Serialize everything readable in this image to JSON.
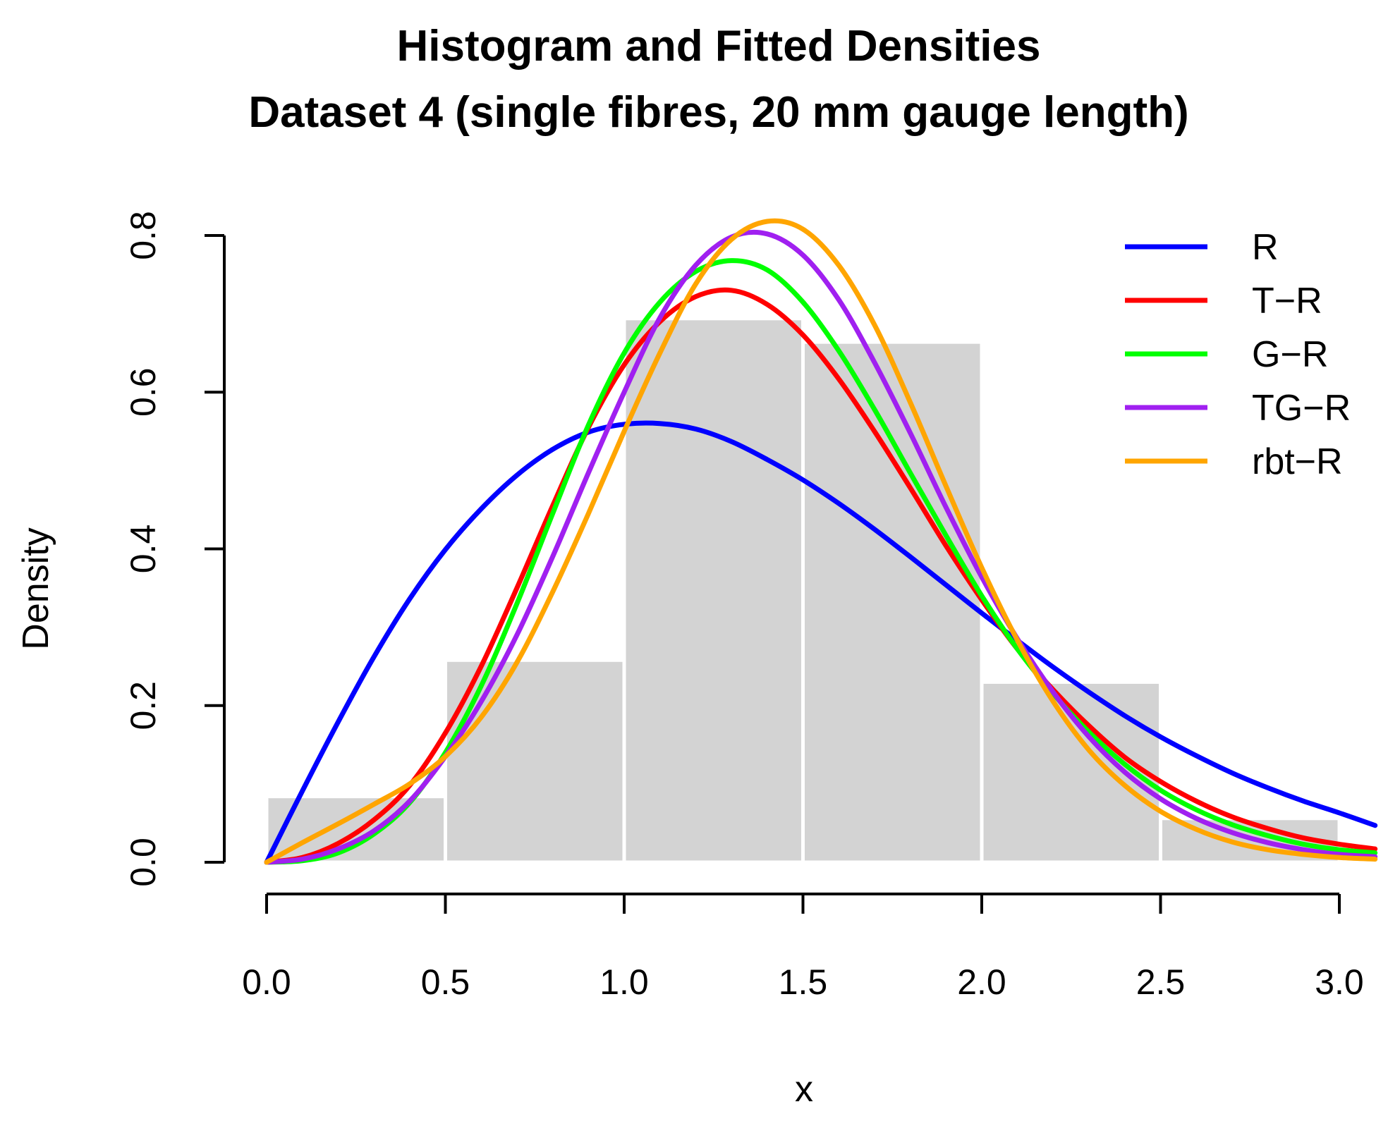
{
  "chart_data": {
    "type": "histogram+line",
    "title_line1": "Histogram and Fitted Densities",
    "title_line2": "Dataset 4 (single fibres, 20 mm gauge length)",
    "xlabel": "x",
    "ylabel": "Density",
    "xlim": [
      0.0,
      3.1
    ],
    "ylim": [
      0.0,
      0.8
    ],
    "x_ticks": [
      "0.0",
      "0.5",
      "1.0",
      "1.5",
      "2.0",
      "2.5",
      "3.0"
    ],
    "y_ticks": [
      "0.0",
      "0.2",
      "0.4",
      "0.6",
      "0.8"
    ],
    "histogram": {
      "color": "#d3d3d3",
      "bins": [
        {
          "from": 0.0,
          "to": 0.5,
          "density": 0.084
        },
        {
          "from": 0.5,
          "to": 1.0,
          "density": 0.258
        },
        {
          "from": 1.0,
          "to": 1.5,
          "density": 0.694
        },
        {
          "from": 1.5,
          "to": 2.0,
          "density": 0.664
        },
        {
          "from": 2.0,
          "to": 2.5,
          "density": 0.23
        },
        {
          "from": 2.5,
          "to": 3.0,
          "density": 0.056
        }
      ]
    },
    "series": [
      {
        "name": "R",
        "color": "#0000ff",
        "x": [
          0.0,
          0.1,
          0.2,
          0.3,
          0.4,
          0.5,
          0.6,
          0.7,
          0.8,
          0.9,
          1.0,
          1.1,
          1.2,
          1.3,
          1.4,
          1.5,
          1.6,
          1.7,
          1.8,
          1.9,
          2.0,
          2.1,
          2.2,
          2.3,
          2.4,
          2.5,
          2.6,
          2.7,
          2.8,
          2.9,
          3.0,
          3.1
        ],
        "y": [
          0.0,
          0.091,
          0.179,
          0.262,
          0.336,
          0.399,
          0.451,
          0.494,
          0.527,
          0.549,
          0.559,
          0.56,
          0.553,
          0.537,
          0.514,
          0.488,
          0.458,
          0.425,
          0.39,
          0.354,
          0.318,
          0.283,
          0.249,
          0.217,
          0.187,
          0.16,
          0.136,
          0.114,
          0.095,
          0.078,
          0.063,
          0.047
        ]
      },
      {
        "name": "T−R",
        "color": "#ff0000",
        "x": [
          0.0,
          0.1,
          0.2,
          0.3,
          0.4,
          0.5,
          0.6,
          0.7,
          0.8,
          0.9,
          1.0,
          1.1,
          1.2,
          1.3,
          1.4,
          1.5,
          1.6,
          1.7,
          1.8,
          1.9,
          2.0,
          2.1,
          2.2,
          2.3,
          2.4,
          2.5,
          2.6,
          2.7,
          2.8,
          2.9,
          3.0,
          3.1
        ],
        "y": [
          0.0,
          0.006,
          0.024,
          0.054,
          0.098,
          0.165,
          0.25,
          0.35,
          0.455,
          0.555,
          0.635,
          0.69,
          0.722,
          0.73,
          0.712,
          0.673,
          0.617,
          0.55,
          0.478,
          0.404,
          0.335,
          0.272,
          0.22,
          0.174,
          0.134,
          0.103,
          0.078,
          0.058,
          0.043,
          0.031,
          0.023,
          0.017
        ]
      },
      {
        "name": "G−R",
        "color": "#00ff00",
        "x": [
          0.0,
          0.1,
          0.2,
          0.3,
          0.4,
          0.5,
          0.6,
          0.7,
          0.8,
          0.9,
          1.0,
          1.1,
          1.2,
          1.3,
          1.4,
          1.5,
          1.6,
          1.7,
          1.8,
          1.9,
          2.0,
          2.1,
          2.2,
          2.3,
          2.4,
          2.5,
          2.6,
          2.7,
          2.8,
          2.9,
          3.0,
          3.1
        ],
        "y": [
          0.0,
          0.002,
          0.012,
          0.036,
          0.076,
          0.14,
          0.225,
          0.33,
          0.445,
          0.558,
          0.65,
          0.715,
          0.754,
          0.768,
          0.756,
          0.715,
          0.653,
          0.578,
          0.497,
          0.417,
          0.34,
          0.272,
          0.215,
          0.166,
          0.125,
          0.092,
          0.067,
          0.048,
          0.034,
          0.023,
          0.016,
          0.012
        ]
      },
      {
        "name": "TG−R",
        "color": "#a020f0",
        "x": [
          0.0,
          0.1,
          0.2,
          0.3,
          0.4,
          0.5,
          0.6,
          0.7,
          0.8,
          0.9,
          1.0,
          1.1,
          1.2,
          1.3,
          1.4,
          1.5,
          1.6,
          1.7,
          1.8,
          1.9,
          2.0,
          2.1,
          2.2,
          2.3,
          2.4,
          2.5,
          2.6,
          2.7,
          2.8,
          2.9,
          3.0,
          3.1
        ],
        "y": [
          0.0,
          0.004,
          0.017,
          0.04,
          0.078,
          0.135,
          0.205,
          0.29,
          0.39,
          0.497,
          0.6,
          0.695,
          0.762,
          0.798,
          0.802,
          0.775,
          0.718,
          0.638,
          0.548,
          0.453,
          0.364,
          0.285,
          0.217,
          0.16,
          0.115,
          0.081,
          0.056,
          0.038,
          0.025,
          0.016,
          0.01,
          0.007
        ]
      },
      {
        "name": "rbt−R",
        "color": "#ffa500",
        "x": [
          0.0,
          0.1,
          0.2,
          0.3,
          0.4,
          0.5,
          0.6,
          0.7,
          0.8,
          0.9,
          1.0,
          1.1,
          1.2,
          1.3,
          1.4,
          1.5,
          1.6,
          1.7,
          1.8,
          1.9,
          2.0,
          2.1,
          2.2,
          2.3,
          2.4,
          2.5,
          2.6,
          2.7,
          2.8,
          2.9,
          3.0,
          3.1
        ],
        "y": [
          0.0,
          0.025,
          0.049,
          0.074,
          0.1,
          0.135,
          0.185,
          0.255,
          0.345,
          0.445,
          0.55,
          0.65,
          0.738,
          0.795,
          0.818,
          0.808,
          0.762,
          0.686,
          0.587,
          0.48,
          0.376,
          0.283,
          0.205,
          0.143,
          0.098,
          0.065,
          0.042,
          0.026,
          0.016,
          0.01,
          0.006,
          0.004
        ]
      }
    ],
    "legend_position": "top-right",
    "grid": false
  }
}
